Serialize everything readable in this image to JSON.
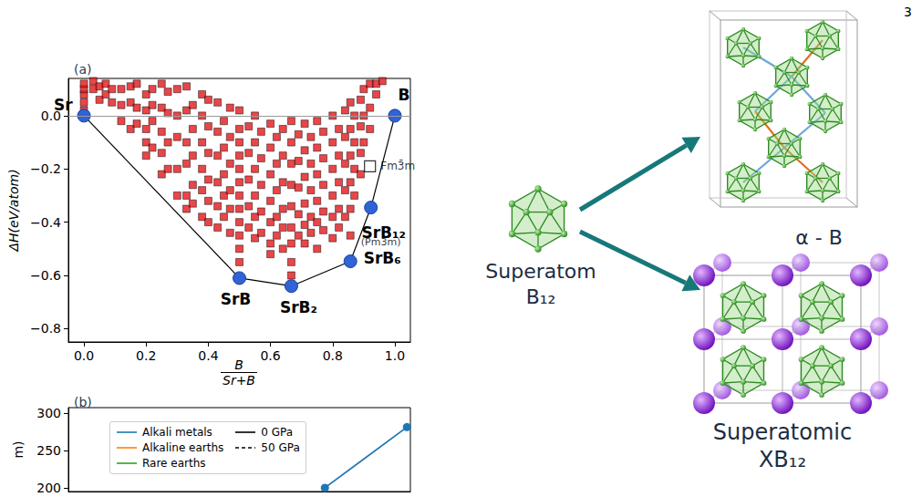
{
  "page_number": "3",
  "chart_data": [
    {
      "type": "scatter",
      "title": "(a)",
      "ylabel": "ΔH(eV/atom)",
      "xlabel": {
        "numerator": "B",
        "denominator": "Sr+B"
      },
      "xlim": [
        -0.05,
        1.05
      ],
      "ylim": [
        -0.85,
        0.14
      ],
      "xticks": [
        {
          "value": 0,
          "label": "0.0"
        },
        0.2,
        0.4,
        0.6,
        0.8,
        {
          "value": 1,
          "label": "1.0"
        }
      ],
      "yticks": [
        {
          "value": -0.8,
          "label": "−0.8"
        },
        {
          "value": -0.6,
          "label": "−0.6"
        },
        {
          "value": -0.4,
          "label": "−0.4"
        },
        {
          "value": -0.2,
          "label": "−0.2"
        },
        {
          "value": 0,
          "label": "0.0"
        }
      ],
      "grid": false,
      "reference_line": 0,
      "points": {
        "color": "#e3181c",
        "marker": "square",
        "x": [
          0,
          0,
          0,
          0,
          0,
          0.03,
          0.03,
          0.05,
          0.05,
          0.07,
          0.07,
          0.09,
          0.09,
          0.12,
          0.12,
          0.12,
          0.15,
          0.15,
          0.15,
          0.17,
          0.17,
          0.17,
          0.2,
          0.2,
          0.2,
          0.2,
          0.2,
          0.22,
          0.22,
          0.22,
          0.22,
          0.25,
          0.25,
          0.25,
          0.25,
          0.25,
          0.27,
          0.27,
          0.27,
          0.27,
          0.3,
          0.3,
          0.3,
          0.3,
          0.3,
          0.33,
          0.33,
          0.33,
          0.33,
          0.33,
          0.33,
          0.35,
          0.35,
          0.35,
          0.35,
          0.35,
          0.38,
          0.38,
          0.38,
          0.38,
          0.38,
          0.38,
          0.4,
          0.4,
          0.4,
          0.4,
          0.4,
          0.4,
          0.43,
          0.43,
          0.43,
          0.43,
          0.43,
          0.43,
          0.45,
          0.45,
          0.45,
          0.45,
          0.45,
          0.47,
          0.47,
          0.47,
          0.47,
          0.47,
          0.47,
          0.5,
          0.5,
          0.5,
          0.5,
          0.5,
          0.5,
          0.5,
          0.5,
          0.5,
          0.5,
          0.5,
          0.5,
          0.53,
          0.53,
          0.53,
          0.53,
          0.53,
          0.55,
          0.55,
          0.55,
          0.55,
          0.55,
          0.55,
          0.57,
          0.57,
          0.57,
          0.57,
          0.57,
          0.6,
          0.6,
          0.6,
          0.6,
          0.6,
          0.6,
          0.6,
          0.62,
          0.62,
          0.62,
          0.62,
          0.62,
          0.64,
          0.64,
          0.64,
          0.64,
          0.64,
          0.64,
          0.667,
          0.667,
          0.667,
          0.667,
          0.667,
          0.667,
          0.667,
          0.667,
          0.667,
          0.69,
          0.69,
          0.69,
          0.69,
          0.69,
          0.71,
          0.71,
          0.71,
          0.71,
          0.71,
          0.71,
          0.73,
          0.73,
          0.73,
          0.73,
          0.73,
          0.75,
          0.75,
          0.75,
          0.75,
          0.75,
          0.75,
          0.77,
          0.77,
          0.77,
          0.77,
          0.77,
          0.8,
          0.8,
          0.8,
          0.8,
          0.8,
          0.8,
          0.82,
          0.82,
          0.82,
          0.82,
          0.82,
          0.84,
          0.84,
          0.84,
          0.84,
          0.84,
          0.857,
          0.857,
          0.857,
          0.857,
          0.857,
          0.857,
          0.87,
          0.87,
          0.87,
          0.87,
          0.89,
          0.89,
          0.89,
          0.89,
          0.9,
          0.9,
          0.9,
          0.92,
          0.92,
          0.92,
          0.94,
          0.94,
          0.96
        ],
        "values": [
          0.02,
          0.05,
          0.08,
          0.1,
          0.12,
          0.1,
          0.13,
          0.11,
          0.06,
          0.12,
          0.08,
          0.05,
          0.1,
          0.1,
          0.04,
          -0.02,
          0.11,
          0.05,
          -0.05,
          0.12,
          0.03,
          -0.03,
          0.08,
          0.02,
          -0.05,
          -0.1,
          -0.15,
          0.1,
          0.04,
          -0.02,
          -0.12,
          0.12,
          0.03,
          -0.06,
          -0.14,
          -0.22,
          0.09,
          0.01,
          -0.1,
          -0.2,
          0.1,
          0,
          -0.08,
          -0.2,
          -0.3,
          0.11,
          0.02,
          -0.1,
          -0.18,
          -0.3,
          -0.35,
          0.04,
          -0.05,
          -0.15,
          -0.26,
          -0.33,
          0.08,
          0,
          -0.1,
          -0.2,
          -0.28,
          -0.38,
          0.06,
          -0.04,
          -0.14,
          -0.24,
          -0.32,
          -0.4,
          0.05,
          -0.06,
          -0.15,
          -0.25,
          -0.34,
          -0.42,
          -0.02,
          -0.12,
          -0.22,
          -0.3,
          -0.38,
          0.03,
          -0.08,
          -0.18,
          -0.28,
          -0.35,
          -0.44,
          0.02,
          -0.05,
          -0.1,
          -0.15,
          -0.2,
          -0.25,
          -0.3,
          -0.35,
          -0.4,
          -0.45,
          -0.5,
          -0.55,
          -0.04,
          -0.14,
          -0.24,
          -0.34,
          -0.42,
          0,
          -0.1,
          -0.2,
          -0.3,
          -0.38,
          -0.46,
          -0.06,
          -0.16,
          -0.26,
          -0.36,
          -0.44,
          -0.03,
          -0.12,
          -0.22,
          -0.32,
          -0.4,
          -0.48,
          -0.52,
          -0.08,
          -0.18,
          -0.28,
          -0.38,
          -0.45,
          -0.05,
          -0.15,
          -0.25,
          -0.35,
          -0.42,
          -0.5,
          -0.02,
          -0.1,
          -0.18,
          -0.26,
          -0.34,
          -0.42,
          -0.48,
          -0.55,
          -0.6,
          -0.07,
          -0.17,
          -0.27,
          -0.37,
          -0.45,
          -0.03,
          -0.13,
          -0.23,
          -0.33,
          -0.41,
          -0.48,
          -0.08,
          -0.18,
          -0.28,
          -0.38,
          -0.44,
          -0.02,
          -0.12,
          -0.22,
          -0.32,
          -0.4,
          -0.5,
          -0.06,
          -0.16,
          -0.26,
          -0.36,
          -0.43,
          0,
          -0.1,
          -0.2,
          -0.3,
          -0.38,
          -0.46,
          -0.05,
          -0.15,
          -0.25,
          -0.35,
          -0.42,
          0.02,
          -0.08,
          -0.18,
          -0.28,
          -0.38,
          0.05,
          -0.05,
          -0.15,
          -0.25,
          -0.35,
          -0.45,
          0,
          -0.1,
          -0.2,
          -0.3,
          0.06,
          -0.04,
          -0.14,
          -0.22,
          0.1,
          0,
          -0.1,
          0.12,
          0.03,
          -0.05,
          0.08,
          0.12,
          0.13
        ]
      },
      "hull": {
        "type": "line",
        "color": "#2f63d6",
        "marker": "circle",
        "x": [
          0,
          0.5,
          0.667,
          0.857,
          0.923,
          1
        ],
        "values": [
          0,
          -0.61,
          -0.64,
          -0.547,
          -0.345,
          0
        ],
        "labels": [
          "Sr",
          "SrB",
          "SrB₂",
          "SrB₆",
          "SrB₁₂",
          "B"
        ]
      },
      "highlight": {
        "x": 0.92,
        "y": -0.19,
        "label": "Fm3̄m",
        "marker": "square"
      },
      "annotations": [
        {
          "text": "(Pm3̄m)",
          "x": 0.955,
          "y": -0.475
        }
      ]
    },
    {
      "type": "line",
      "title": "(b)",
      "ylabel": "m)",
      "xlim": [
        0,
        1
      ],
      "ylim": [
        195,
        307
      ],
      "yticks": [
        200,
        250,
        300
      ],
      "tick_labels": "y",
      "grid": false,
      "legend": "upper left",
      "series": [
        {
          "name": "Alkali metals",
          "color": "#1f77b4",
          "marker": "circle",
          "line_style": "solid",
          "x": [
            0.75,
            0.99
          ],
          "values": [
            200,
            281
          ]
        },
        {
          "name": "Alkaline earths",
          "color": "#ff7f0e",
          "marker": "circle",
          "line_style": "solid",
          "x": [],
          "values": []
        },
        {
          "name": "Rare earths",
          "color": "#2ca02c",
          "marker": "circle",
          "line_style": "solid",
          "x": [],
          "values": []
        }
      ],
      "line_styles": [
        {
          "name": "0 GPa",
          "color": "#000000",
          "line_style": "solid"
        },
        {
          "name": "50 GPa",
          "color": "#000000",
          "line_style": "dashed"
        }
      ]
    }
  ],
  "diagram": {
    "source": {
      "label": "Superatom",
      "formula": "B₁₂"
    },
    "targets": [
      {
        "label": "α - B"
      },
      {
        "label": "Superatomic",
        "formula": "XB₁₂"
      }
    ]
  }
}
